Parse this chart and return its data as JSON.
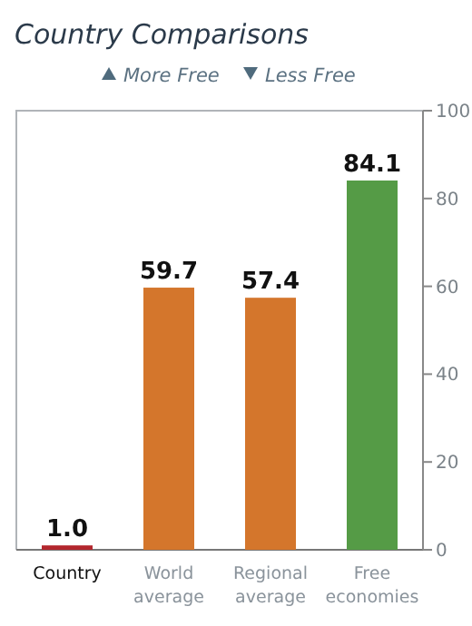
{
  "chart_data": {
    "type": "bar",
    "title": "Country Comparisons",
    "annotations": [
      "More Free",
      "Less Free"
    ],
    "categories": [
      "Country",
      "World average",
      "Regional average",
      "Free economies"
    ],
    "values": [
      1.0,
      59.7,
      57.4,
      84.1
    ],
    "colors": [
      "#b3272e",
      "#d4762c",
      "#d4762c",
      "#559b46"
    ],
    "value_labels": [
      "1.0",
      "59.7",
      "57.4",
      "84.1"
    ],
    "ylim": [
      0,
      100
    ],
    "yticks": [
      0,
      20,
      40,
      60,
      80,
      100
    ],
    "grid": false
  }
}
